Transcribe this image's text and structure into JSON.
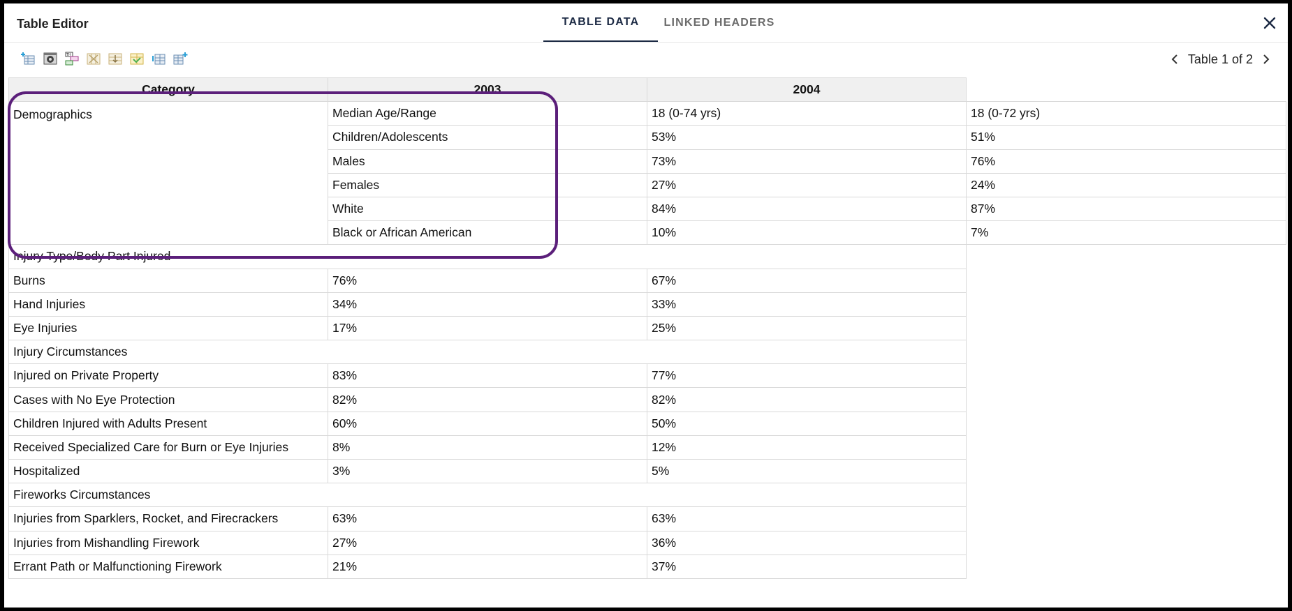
{
  "window": {
    "title": "Table Editor",
    "tabs": [
      {
        "label": "TABLE DATA",
        "active": true
      },
      {
        "label": "LINKED HEADERS",
        "active": false
      }
    ]
  },
  "toolbar": {
    "icons": [
      "insert-row-above-icon",
      "table-settings-icon",
      "table-header-icon",
      "delete-column-icon",
      "merge-rows-icon",
      "split-cells-icon",
      "insert-column-icon",
      "add-column-icon"
    ]
  },
  "pager": {
    "label": "Table 1 of 2"
  },
  "table": {
    "headers": [
      "Category",
      "2003",
      "2004"
    ],
    "demographics": {
      "label": "Demographics",
      "rows": [
        {
          "label": "Median Age/Range",
          "v2003": "18 (0-74 yrs)",
          "v2004": "18 (0-72 yrs)"
        },
        {
          "label": "Children/Adolescents",
          "v2003": "53%",
          "v2004": "51%"
        },
        {
          "label": "Males",
          "v2003": "73%",
          "v2004": "76%"
        },
        {
          "label": "Females",
          "v2003": "27%",
          "v2004": "24%"
        },
        {
          "label": "White",
          "v2003": "84%",
          "v2004": "87%"
        },
        {
          "label": "Black or African American",
          "v2003": "10%",
          "v2004": "7%"
        }
      ]
    },
    "sections": [
      {
        "title": "Injury Type/Body Part Injured",
        "rows": [
          {
            "label": "Burns",
            "v2003": "76%",
            "v2004": "67%"
          },
          {
            "label": "Hand Injuries",
            "v2003": "34%",
            "v2004": "33%"
          },
          {
            "label": "Eye Injuries",
            "v2003": "17%",
            "v2004": "25%"
          }
        ]
      },
      {
        "title": "Injury Circumstances",
        "rows": [
          {
            "label": "Injured on Private Property",
            "v2003": "83%",
            "v2004": "77%"
          },
          {
            "label": "Cases with No Eye Protection",
            "v2003": "82%",
            "v2004": "82%"
          },
          {
            "label": "Children Injured with Adults Present",
            "v2003": "60%",
            "v2004": "50%"
          },
          {
            "label": "Received Specialized Care for Burn or Eye Injuries",
            "v2003": "8%",
            "v2004": "12%"
          },
          {
            "label": "Hospitalized",
            "v2003": "3%",
            "v2004": "5%"
          }
        ]
      },
      {
        "title": "Fireworks Circumstances",
        "rows": [
          {
            "label": "Injuries from Sparklers, Rocket, and Firecrackers",
            "v2003": "63%",
            "v2004": "63%"
          },
          {
            "label": "Injuries from Mishandling Firework",
            "v2003": "27%",
            "v2004": "36%"
          },
          {
            "label": "Errant Path or Malfunctioning Firework",
            "v2003": "21%",
            "v2004": "37%"
          }
        ]
      }
    ]
  },
  "colors": {
    "annotation": "#5b1f7a",
    "tab_active": "#1c2a44",
    "header_bg": "#f0f0f0"
  }
}
